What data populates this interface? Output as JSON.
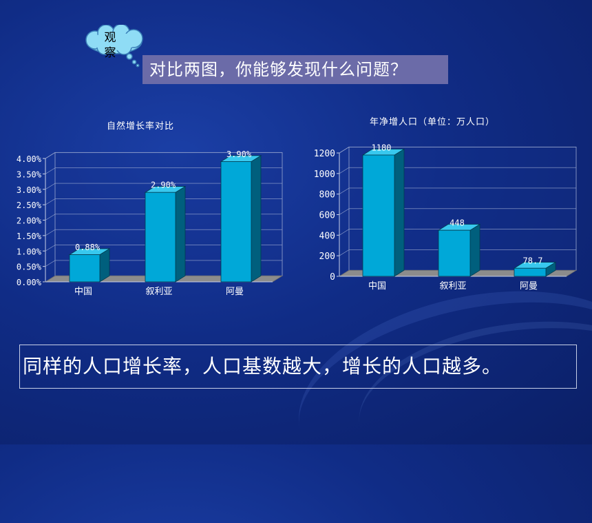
{
  "callout": {
    "label": "观察"
  },
  "question": "对比两图，你能够发现什么问题？",
  "conclusion": "同样的人口增长率，人口基数越大，增长的人口越多。",
  "colors": {
    "bar_front": "#00a8d8",
    "bar_side": "#005f7d",
    "bar_top": "#38c8ee",
    "floor": "#8c8c8c"
  },
  "chart_data": [
    {
      "type": "bar",
      "title": "自然增长率对比",
      "categories": [
        "中国",
        "叙利亚",
        "阿曼"
      ],
      "values": [
        0.88,
        2.9,
        3.9
      ],
      "data_labels": [
        "0.88%",
        "2.90%",
        "3.90%"
      ],
      "ylim": [
        0,
        4
      ],
      "yticks": [
        "0.00%",
        "0.50%",
        "1.00%",
        "1.50%",
        "2.00%",
        "2.50%",
        "3.00%",
        "3.50%",
        "4.00%"
      ],
      "xlabel": "",
      "ylabel": "",
      "grid": true,
      "style": "3d"
    },
    {
      "type": "bar",
      "title": "年净增人口（单位：万人口）",
      "categories": [
        "中国",
        "叙利亚",
        "阿曼"
      ],
      "values": [
        1180,
        448,
        78.7
      ],
      "data_labels": [
        "1180",
        "448",
        "78.7"
      ],
      "ylim": [
        0,
        1200
      ],
      "yticks": [
        "0",
        "200",
        "400",
        "600",
        "800",
        "1000",
        "1200"
      ],
      "xlabel": "",
      "ylabel": "",
      "grid": true,
      "style": "3d"
    }
  ]
}
